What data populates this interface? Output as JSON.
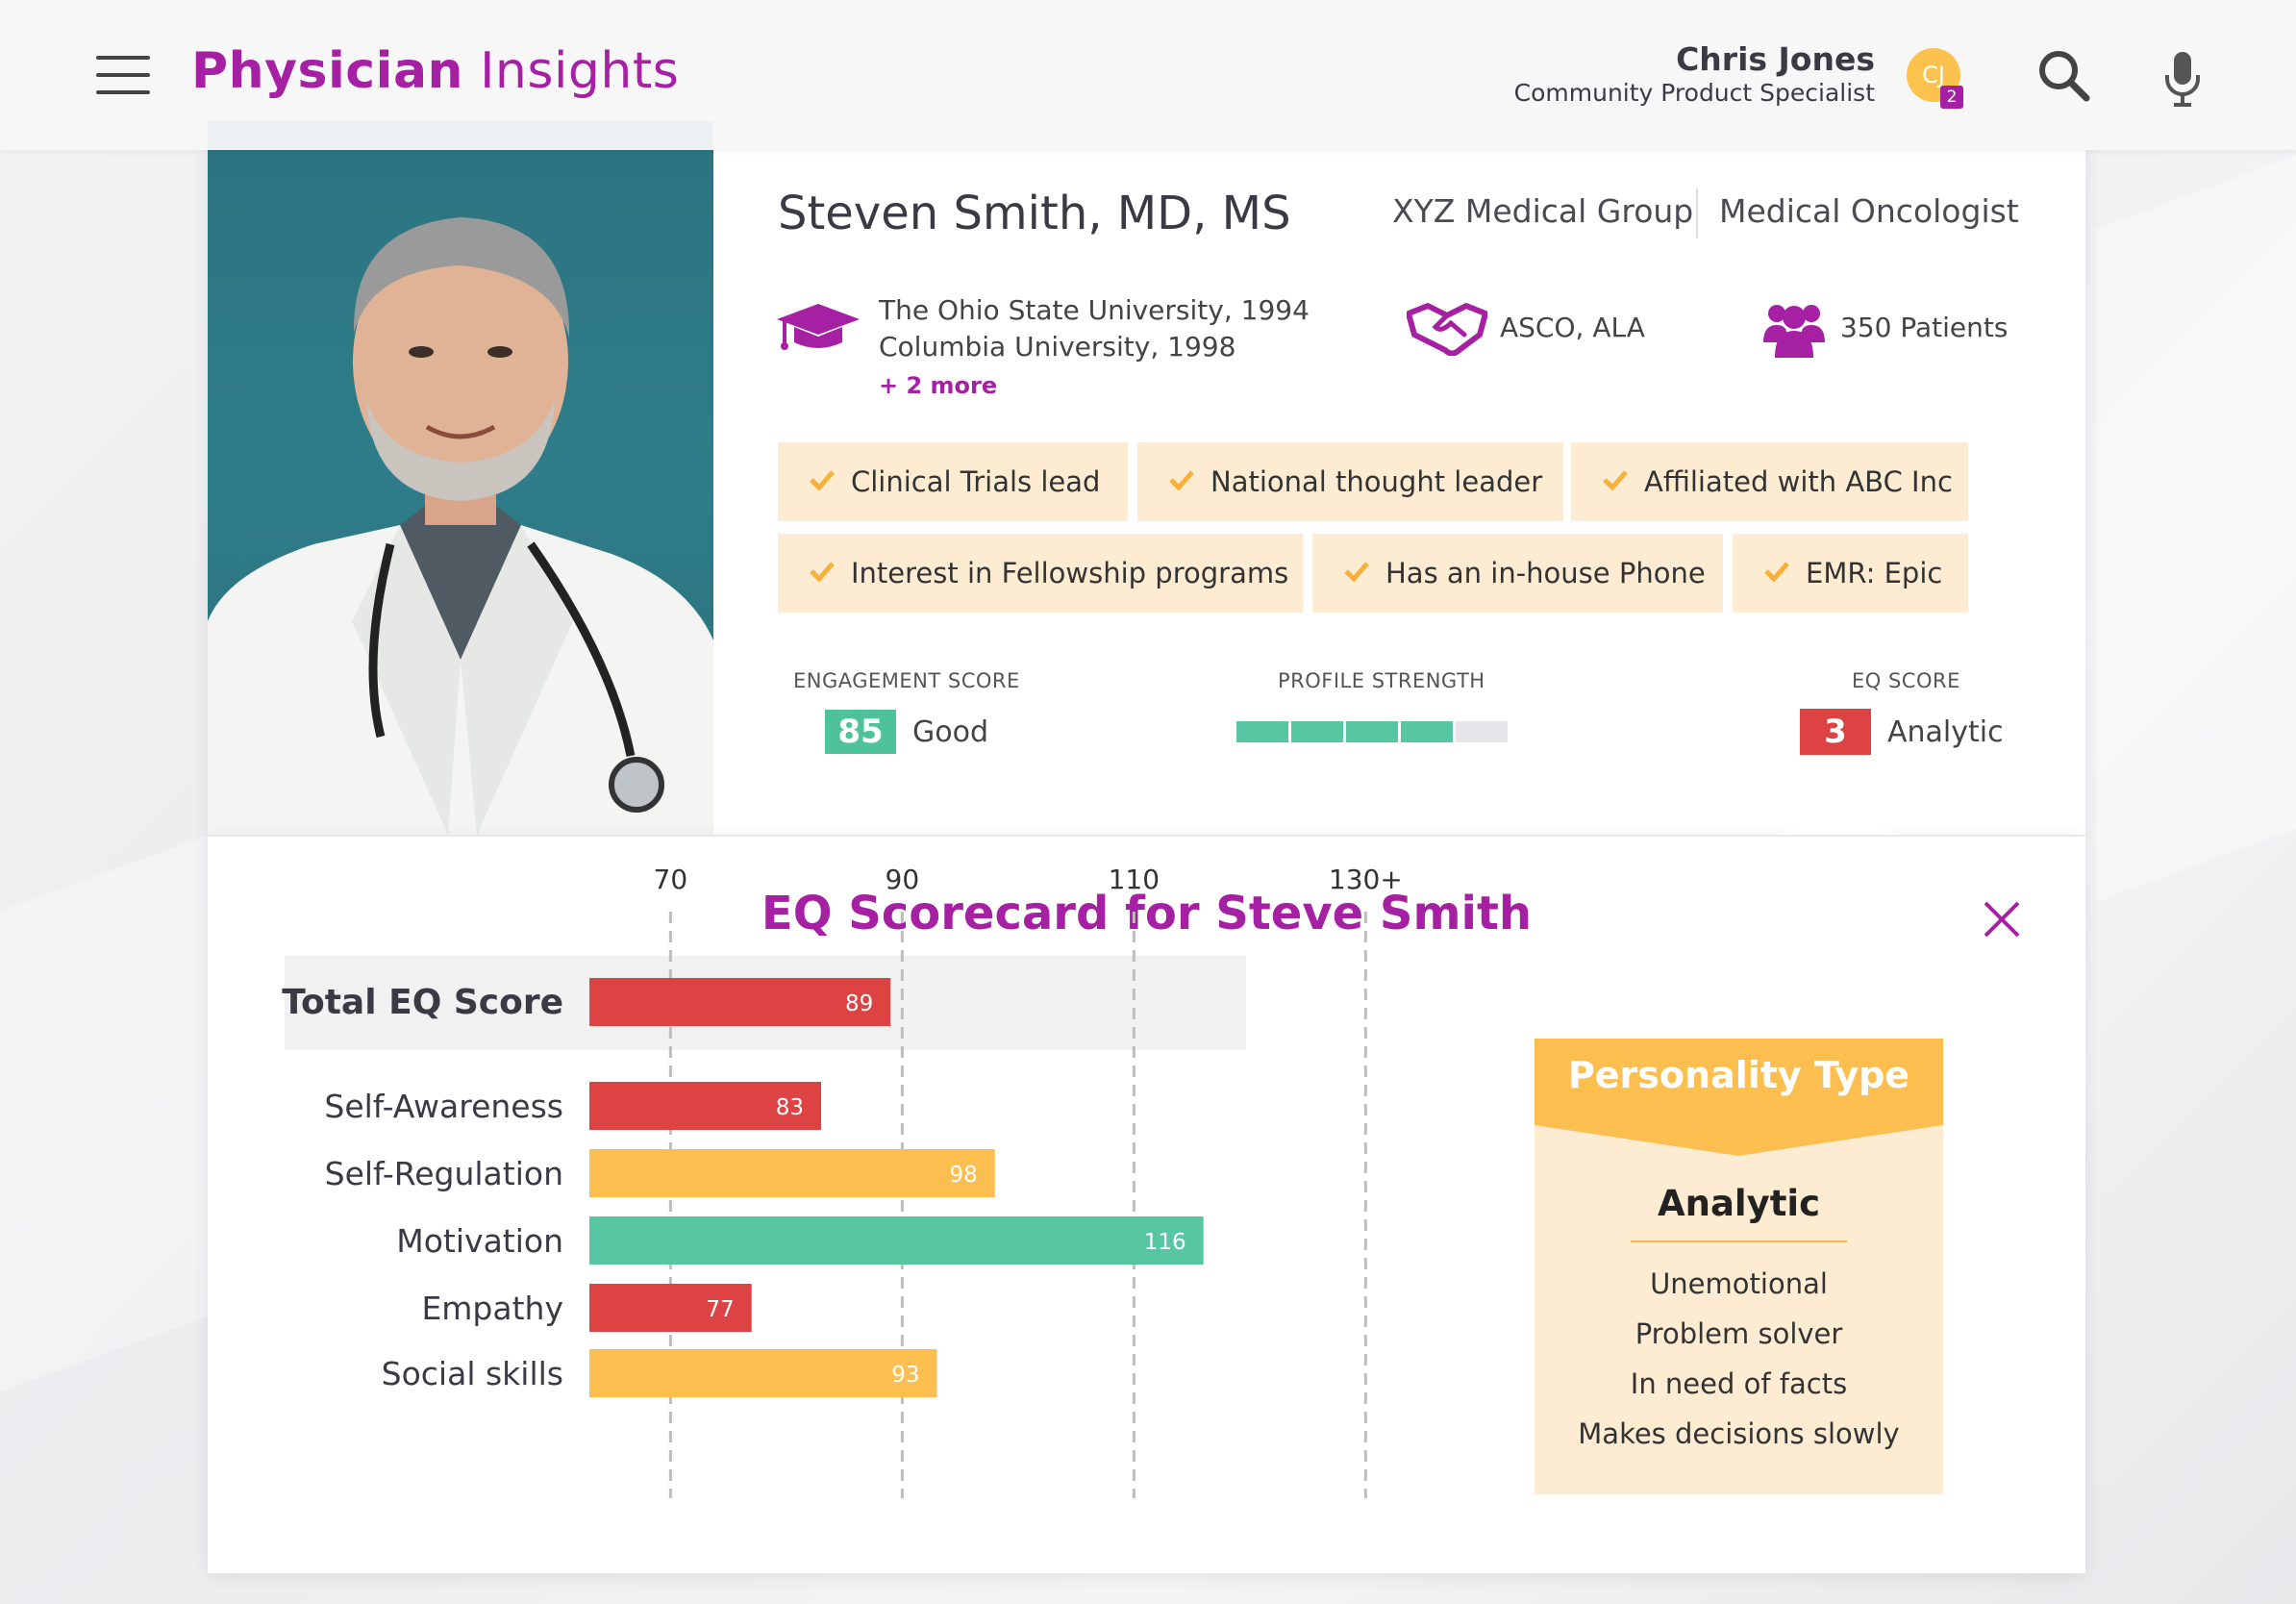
{
  "header": {
    "title_part1": "Physician",
    "title_part2": "Insights",
    "user_name": "Chris Jones",
    "user_role": "Community Product Specialist",
    "avatar_initials": "CJ",
    "notification_count": "2"
  },
  "profile": {
    "name": "Steven Smith, MD, MS",
    "organization": "XYZ Medical Group",
    "specialty": "Medical Oncologist",
    "education": [
      "The Ohio State University, 1994",
      "Columbia University, 1998"
    ],
    "education_more": "+ 2 more",
    "associations": "ASCO, ALA",
    "patients": "350 Patients",
    "tags": [
      "Clinical Trials lead",
      "National thought leader",
      "Affiliated with ABC Inc",
      "Interest in Fellowship programs",
      "Has an in-house Phone",
      "EMR: Epic"
    ],
    "engagement": {
      "label": "ENGAGEMENT SCORE",
      "value": "85",
      "rating": "Good"
    },
    "profile_strength": {
      "label": "PROFILE STRENGTH",
      "filled_segments": 4,
      "total_segments": 5
    },
    "eq": {
      "label": "EQ SCORE",
      "value": "3",
      "rating": "Analytic"
    }
  },
  "scorecard": {
    "title": "EQ Scorecard for Steve Smith"
  },
  "personality": {
    "heading": "Personality Type",
    "type": "Analytic",
    "traits": [
      "Unemotional",
      "Problem solver",
      "In need of facts",
      "Makes decisions slowly"
    ]
  },
  "colors": {
    "brand": "#a520a3",
    "red": "#dd4343",
    "yellow": "#fcbe4f",
    "green": "#57c6a2",
    "tag_bg": "#fdecd2"
  },
  "chart_data": {
    "type": "bar",
    "orientation": "horizontal",
    "categories": [
      "Total EQ Score",
      "Self-Awareness",
      "Self-Regulation",
      "Motivation",
      "Empathy",
      "Social skills"
    ],
    "values": [
      89,
      83,
      98,
      116,
      77,
      93
    ],
    "bar_colors": [
      "#dd4343",
      "#dd4343",
      "#fcbe4f",
      "#57c6a2",
      "#dd4343",
      "#fcbe4f"
    ],
    "x_ticks": [
      "70",
      "90",
      "110",
      "130+"
    ],
    "x_tick_values": [
      70,
      90,
      110,
      130
    ],
    "xlim": [
      62,
      130
    ],
    "grid": "dashed vertical at ticks"
  }
}
